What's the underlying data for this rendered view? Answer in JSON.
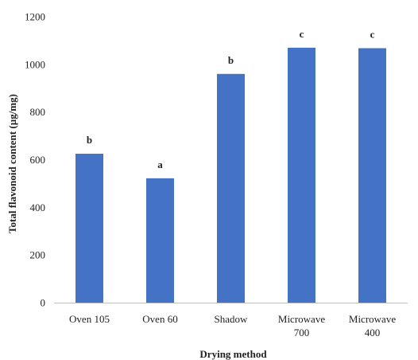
{
  "chart_data": {
    "type": "bar",
    "categories": [
      [
        "Oven 105"
      ],
      [
        "Oven 60"
      ],
      [
        "Shadow"
      ],
      [
        "Microwave",
        "700"
      ],
      [
        "Microwave",
        "400"
      ]
    ],
    "values": [
      625,
      522,
      960,
      1070,
      1068
    ],
    "significance_letters": [
      "b",
      "a",
      "b",
      "c",
      "c"
    ],
    "xlabel": "Drying method",
    "ylabel": "Total flavonoid content (µg/mg)",
    "ylim": [
      0,
      1200
    ],
    "yticks": [
      0,
      200,
      400,
      600,
      800,
      1000,
      1200
    ],
    "bar_color": "#4472C4",
    "axis_color": "#bfbfbf",
    "grid": false,
    "legend": "none"
  }
}
